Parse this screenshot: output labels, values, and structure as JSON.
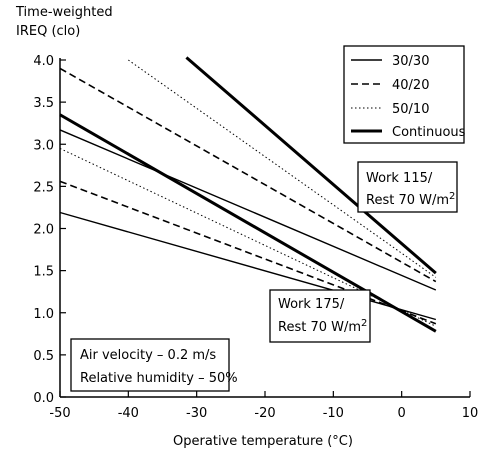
{
  "chart_data": {
    "type": "line",
    "ylabel": [
      "Time-weighted",
      "IREQ (clo)"
    ],
    "xlabel": "Operative temperature (°C)",
    "xlim": [
      -50,
      10
    ],
    "ylim": [
      0,
      4
    ],
    "xticks": [
      -50,
      -40,
      -30,
      -20,
      -10,
      0,
      10
    ],
    "xtick_labels": [
      "-50",
      "-40",
      "-30",
      "-20",
      "-10",
      "0",
      "10"
    ],
    "yticks": [
      0,
      0.5,
      1,
      1.5,
      2,
      2.5,
      3,
      3.5,
      4
    ],
    "ytick_labels": [
      "0.0",
      "0.5",
      "1.0",
      "1.5",
      "2.0",
      "2.5",
      "3.0",
      "3.5",
      "4.0"
    ],
    "grid": false,
    "legend": {
      "position": "top-right",
      "entries": [
        {
          "label": "30/30",
          "style": "solid"
        },
        {
          "label": "40/20",
          "style": "dashed"
        },
        {
          "label": "50/10",
          "style": "dotted"
        },
        {
          "label": "Continuous",
          "style": "thick"
        }
      ]
    },
    "series": [
      {
        "group": "Work 115/Rest 70",
        "style": "solid",
        "x": [
          -50,
          5
        ],
        "y": [
          3.17,
          1.27
        ]
      },
      {
        "group": "Work 115/Rest 70",
        "style": "dashed",
        "x": [
          -50,
          5
        ],
        "y": [
          3.9,
          1.37
        ]
      },
      {
        "group": "Work 115/Rest 70",
        "style": "dotted",
        "x": [
          -40,
          5
        ],
        "y": [
          4.0,
          1.42
        ]
      },
      {
        "group": "Work 115/Rest 70",
        "style": "thick",
        "x": [
          -31.5,
          5
        ],
        "y": [
          4.03,
          1.47
        ]
      },
      {
        "group": "Work 175/Rest 70",
        "style": "solid",
        "x": [
          -50,
          5
        ],
        "y": [
          2.19,
          0.92
        ]
      },
      {
        "group": "Work 175/Rest 70",
        "style": "dashed",
        "x": [
          -50,
          5
        ],
        "y": [
          2.56,
          0.87
        ]
      },
      {
        "group": "Work 175/Rest 70",
        "style": "dotted",
        "x": [
          -50,
          5
        ],
        "y": [
          2.95,
          0.84
        ]
      },
      {
        "group": "Work 175/Rest 70",
        "style": "thick",
        "x": [
          -50,
          5
        ],
        "y": [
          3.35,
          0.78
        ]
      }
    ],
    "annotations": {
      "work115": {
        "line1": "Work 115/",
        "line2": "Rest 70 W/m",
        "sup": "2"
      },
      "work175": {
        "line1": "Work 175/",
        "line2": "Rest 70 W/m",
        "sup": "2"
      },
      "conditions": {
        "line1": "Air velocity – 0.2 m/s",
        "line2": "Relative humidity – 50%"
      }
    }
  }
}
